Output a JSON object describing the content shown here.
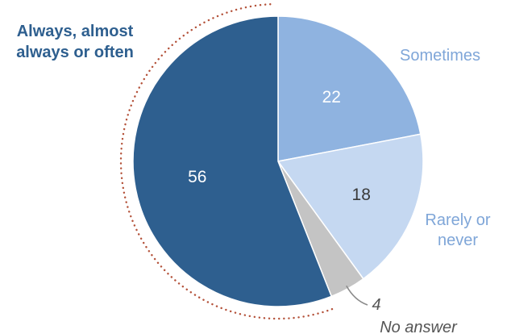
{
  "chart_data": {
    "type": "pie",
    "categories": [
      {
        "label_lines": [
          "Sometimes"
        ],
        "value": 22,
        "value_text": "22",
        "color": "#8fb3e0",
        "value_color": "#ffffff",
        "label_color": "#7fa6d8"
      },
      {
        "label_lines": [
          "Rarely or",
          "never"
        ],
        "value": 18,
        "value_text": "18",
        "color": "#c5d8f1",
        "value_color": "#3a3a3a",
        "label_color": "#7fa6d8"
      },
      {
        "label_lines": [
          "No answer"
        ],
        "value": 4,
        "value_text": "4",
        "color": "#c4c4c4",
        "value_color": "#555555",
        "label_color": "#555555"
      },
      {
        "label_lines": [
          "Always, almost",
          "always or often"
        ],
        "value": 56,
        "value_text": "56",
        "color": "#2e5f8f",
        "value_color": "#ffffff",
        "label_color": "#2e5f8f"
      }
    ],
    "start_angle_deg": 0,
    "direction": "clockwise",
    "highlight": "dotted arc around \"Always, almost always or often\" slice",
    "highlight_color": "#b4523a"
  }
}
